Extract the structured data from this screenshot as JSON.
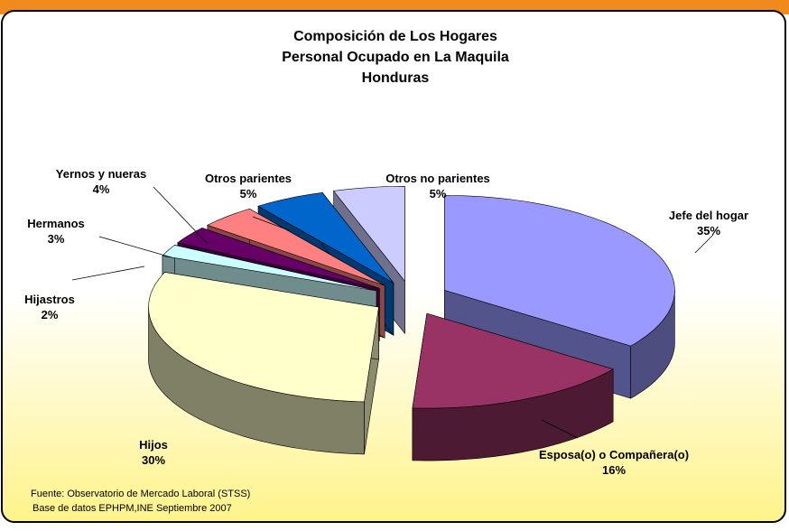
{
  "chart_data": {
    "type": "pie",
    "title": [
      "Composición de Los Hogares",
      "Personal Ocupado en La Maquila",
      "Honduras"
    ],
    "categories": [
      "Jefe del hogar",
      "Esposa(o) o Compañera(o)",
      "Hijos",
      "Hijastros",
      "Hermanos",
      "Yernos y nueras",
      "Otros parientes",
      "Otros no parientes"
    ],
    "values": [
      35,
      16,
      30,
      2,
      3,
      4,
      5,
      5
    ],
    "value_labels": [
      "35%",
      "16%",
      "30%",
      "2%",
      "3%",
      "4%",
      "5%",
      "5%"
    ],
    "colors": [
      "#9999ff",
      "#993366",
      "#ffffcc",
      "#ccffff",
      "#660066",
      "#ff8080",
      "#0066cc",
      "#ccccff"
    ],
    "source": [
      "Fuente: Observatorio de Mercado Laboral (STSS)",
      "Base de datos EPHPM,INE Septiembre 2007"
    ]
  }
}
